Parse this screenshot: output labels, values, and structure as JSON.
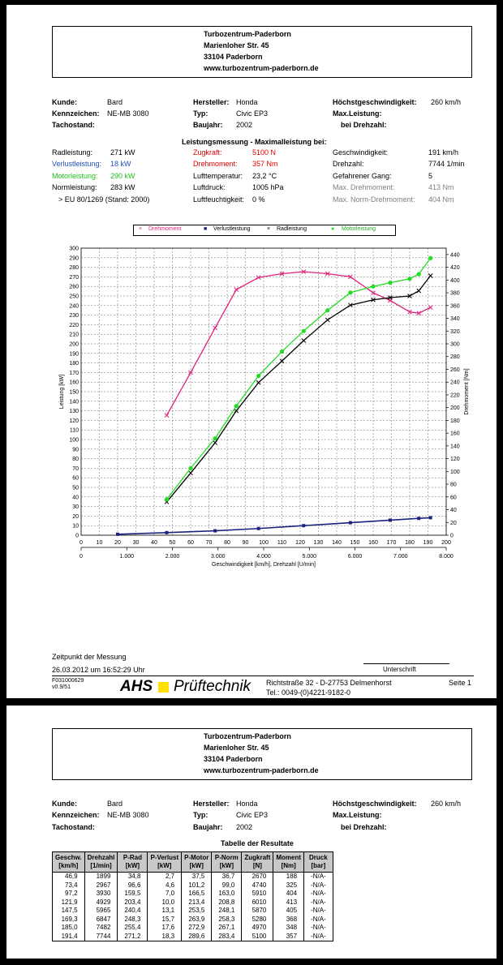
{
  "address": {
    "name": "Turbozentrum-Paderborn",
    "street": "Marienloher Str. 45",
    "city": "33104 Paderborn",
    "web": "www.turbozentrum-paderborn.de"
  },
  "info": {
    "kunde_label": "Kunde:",
    "kunde": "Bard",
    "kennzeichen_label": "Kennzeichen:",
    "kennzeichen": "NE-MB 3080",
    "tacho_label": "Tachostand:",
    "hersteller_label": "Hersteller:",
    "hersteller": "Honda",
    "typ_label": "Typ:",
    "typ": "Civic EP3",
    "baujahr_label": "Baujahr:",
    "baujahr": "2002",
    "vmax_label": "Höchstgeschwindigkeit:",
    "vmax": "260 km/h",
    "maxleistung_label": "Max.Leistung:",
    "drehzahl_label": "bei Drehzahl:"
  },
  "measurement": {
    "title": "Leistungsmessung - Maximalleistung bei:",
    "radleistung_label": "Radleistung:",
    "radleistung": "271 kW",
    "verlust_label": "Verlustleistung:",
    "verlust": "18 kW",
    "motor_label": "Motorleistung:",
    "motor": "290 kW",
    "norm_label": "Normleistung:",
    "norm": "283 kW",
    "norm_ref": "> EU 80/1269 (Stand: 2000)",
    "zugkraft_label": "Zugkraft:",
    "zugkraft": "5100 N",
    "drehmoment_label": "Drehmoment:",
    "drehmoment": "357 Nm",
    "lufttemp_label": "Lufttemperatur:",
    "lufttemp": "23,2 °C",
    "luftdruck_label": "Luftdruck:",
    "luftdruck": "1005 hPa",
    "luftfeucht_label": "Luftfeuchtigkeit:",
    "luftfeucht": "0 %",
    "geschw_label": "Geschwindigkeit:",
    "geschw": "191 km/h",
    "drehzahl_label": "Drehzahl:",
    "drehzahl": "7744 1/min",
    "gang_label": "Gefahrener Gang:",
    "gang": "5",
    "maxdm_label": "Max. Drehmoment:",
    "maxdm": "413 Nm",
    "maxnorm_label": "Max. Norm-Drehmoment:",
    "maxnorm": "404 Nm"
  },
  "colors": {
    "torque": "#e0207a",
    "loss": "#1a237e",
    "wheel": "#000000",
    "engine": "#22dd22"
  },
  "chart_data": {
    "type": "line",
    "legend_placement": "top",
    "xlabel": "Geschwindigkeit [km/h], Drehzahl [U/min]",
    "ylabel": "Leistung [kW]",
    "y2label": "Drehmoment [Nm]",
    "x_speed_range": [
      0,
      200
    ],
    "x_speed_ticks": [
      "0",
      "10",
      "20",
      "30",
      "40",
      "50",
      "60",
      "70",
      "80",
      "90",
      "100",
      "110",
      "120",
      "130",
      "140",
      "150",
      "160",
      "170",
      "180",
      "190",
      "200"
    ],
    "x_rpm_ticks": [
      "0",
      "1.000",
      "2.000",
      "3.000",
      "4.000",
      "5.000",
      "6.000",
      "7.000",
      "8.000"
    ],
    "ylim": [
      0,
      300
    ],
    "y_ticks": [
      "0",
      "10",
      "20",
      "30",
      "40",
      "50",
      "60",
      "70",
      "80",
      "90",
      "100",
      "110",
      "120",
      "130",
      "140",
      "150",
      "160",
      "170",
      "180",
      "190",
      "200",
      "210",
      "220",
      "230",
      "240",
      "250",
      "260",
      "270",
      "280",
      "290",
      "300"
    ],
    "y2lim": [
      0,
      450
    ],
    "y2_ticks": [
      "0",
      "20",
      "40",
      "60",
      "80",
      "100",
      "120",
      "140",
      "160",
      "180",
      "200",
      "220",
      "240",
      "260",
      "280",
      "300",
      "320",
      "340",
      "360",
      "380",
      "400",
      "420",
      "440"
    ],
    "grid": true,
    "series": [
      {
        "name": "Drehmoment",
        "axis": "right",
        "marker": "×",
        "x": [
          46.9,
          60,
          73.4,
          85,
          97.2,
          110,
          121.9,
          135,
          147.5,
          160,
          169.3,
          180,
          185,
          191.4
        ],
        "y": [
          188,
          255,
          325,
          385,
          404,
          410,
          413,
          410,
          405,
          380,
          368,
          350,
          348,
          357
        ]
      },
      {
        "name": "Verlustleistung",
        "axis": "left",
        "marker": "■",
        "x": [
          20,
          46.9,
          73.4,
          97.2,
          121.9,
          147.5,
          169.3,
          185,
          191.4
        ],
        "y": [
          1,
          2.7,
          4.6,
          7.0,
          10.0,
          13.1,
          15.7,
          17.6,
          18.3
        ]
      },
      {
        "name": "Radleistung",
        "axis": "left",
        "marker": "×",
        "x": [
          46.9,
          60,
          73.4,
          85,
          97.2,
          110,
          121.9,
          135,
          147.5,
          160,
          169.3,
          180,
          185,
          191.4
        ],
        "y": [
          34.8,
          65,
          96.6,
          130,
          159.5,
          182,
          203.4,
          225,
          240.4,
          246,
          248.3,
          250,
          255.4,
          271.2
        ]
      },
      {
        "name": "Motorleistung",
        "axis": "left",
        "marker": "●",
        "x": [
          46.9,
          60,
          73.4,
          85,
          97.2,
          110,
          121.9,
          135,
          147.5,
          160,
          169.3,
          180,
          185,
          191.4
        ],
        "y": [
          37.5,
          70,
          101.2,
          135,
          166.5,
          192,
          213.4,
          235,
          253.5,
          260,
          263.9,
          268,
          272.9,
          289.6
        ]
      }
    ]
  },
  "footer": {
    "zeitpunkt_label": "Zeitpunkt der Messung",
    "zeitpunkt": "26.03.2012 um 16:52:29 Uhr",
    "unterschrift": "Unterschrift",
    "code1": "F031000629",
    "code2": "v0.9/51",
    "brand_ahs": "AHS",
    "brand_pruef": "Prüftechnik",
    "firm_addr": "Richtstraße 32 - D-27753 Delmenhorst",
    "firm_tel": "Tel.: 0049-(0)4221-9182-0",
    "seite": "Seite 1"
  },
  "results": {
    "title": "Tabelle der Resultate",
    "headers": [
      [
        "Geschw.",
        "[km/h]"
      ],
      [
        "Drehzahl",
        "[1/min]"
      ],
      [
        "P-Rad",
        "[kW]"
      ],
      [
        "P-Verlust",
        "[kW]"
      ],
      [
        "P-Motor",
        "[kW]"
      ],
      [
        "P-Norm",
        "[kW]"
      ],
      [
        "Zugkraft",
        "[N]"
      ],
      [
        "Moment",
        "[Nm]"
      ],
      [
        "Druck",
        "[bar]"
      ]
    ],
    "rows": [
      [
        "46,9",
        "1899",
        "34,8",
        "2,7",
        "37,5",
        "36,7",
        "2670",
        "188",
        "-N/A-"
      ],
      [
        "73,4",
        "2967",
        "96,6",
        "4,6",
        "101,2",
        "99,0",
        "4740",
        "325",
        "-N/A-"
      ],
      [
        "97,2",
        "3930",
        "159,5",
        "7,0",
        "166,5",
        "163,0",
        "5910",
        "404",
        "-N/A-"
      ],
      [
        "121,9",
        "4929",
        "203,4",
        "10,0",
        "213,4",
        "208,8",
        "6010",
        "413",
        "-N/A-"
      ],
      [
        "147,5",
        "5965",
        "240,4",
        "13,1",
        "253,5",
        "248,1",
        "5870",
        "405",
        "-N/A-"
      ],
      [
        "169,3",
        "6847",
        "248,3",
        "15,7",
        "263,9",
        "258,3",
        "5280",
        "368",
        "-N/A-"
      ],
      [
        "185,0",
        "7482",
        "255,4",
        "17,6",
        "272,9",
        "267,1",
        "4970",
        "348",
        "-N/A-"
      ],
      [
        "191,4",
        "7744",
        "271,2",
        "18,3",
        "289,6",
        "283,4",
        "5100",
        "357",
        "-N/A-"
      ]
    ]
  }
}
